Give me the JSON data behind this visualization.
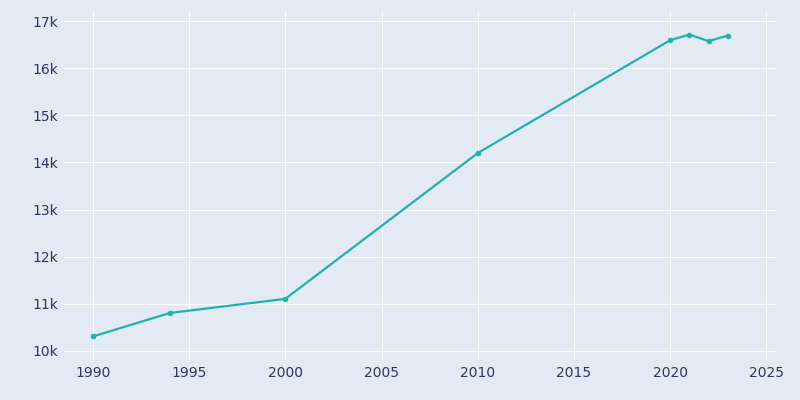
{
  "years": [
    1990,
    1994,
    2000,
    2010,
    2020,
    2021,
    2022,
    2023
  ],
  "population": [
    10300,
    10800,
    11100,
    14200,
    16600,
    16720,
    16580,
    16700
  ],
  "line_color": "#20b2aa",
  "marker": "o",
  "marker_size": 3.5,
  "background_color": "#e3eaf4",
  "grid_color": "#ffffff",
  "xlim": [
    1988.5,
    2025.5
  ],
  "ylim": [
    9800,
    17200
  ],
  "xticks": [
    1990,
    1995,
    2000,
    2005,
    2010,
    2015,
    2020,
    2025
  ],
  "yticks": [
    10000,
    11000,
    12000,
    13000,
    14000,
    15000,
    16000,
    17000
  ],
  "ytick_labels": [
    "10k",
    "11k",
    "12k",
    "13k",
    "14k",
    "15k",
    "16k",
    "17k"
  ],
  "tick_color": "#2e3563"
}
